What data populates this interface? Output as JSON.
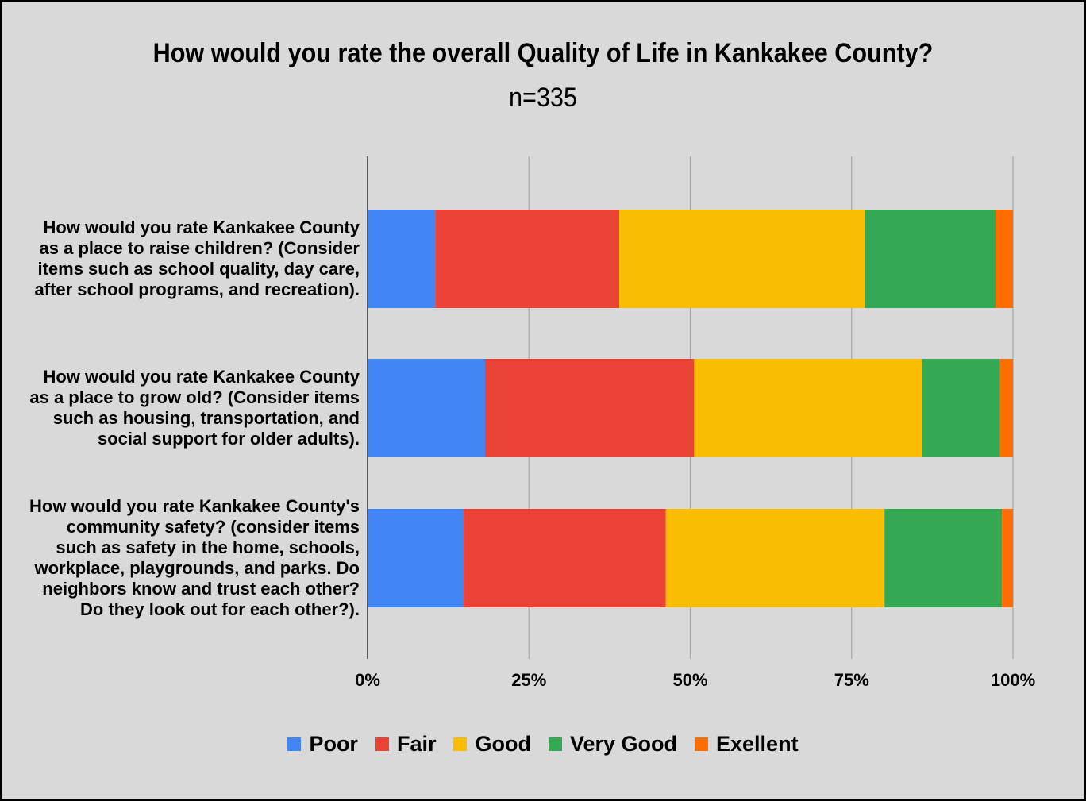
{
  "chart_data": {
    "type": "bar",
    "orientation": "horizontal",
    "stacked": "percent",
    "title": "How would you rate the overall Quality of Life in Kankakee County?",
    "subtitle": "n=335",
    "categories": [
      "How would you rate Kankakee County\nas a place to raise children? (Consider\nitems such as school quality, day care,\nafter school programs, and recreation).",
      "How would you rate Kankakee County\nas a place to grow old? (Consider items\nsuch as housing, transportation, and\nsocial support for older adults).",
      "How would you rate Kankakee County's\ncommunity safety? (consider items\nsuch as safety in the home, schools,\nworkplace, playgrounds, and parks. Do\nneighbors know and trust each other?\nDo they look out for each other?)."
    ],
    "series": [
      {
        "name": "Poor",
        "color": "#4285f4",
        "values": [
          10.5,
          18.2,
          14.9
        ]
      },
      {
        "name": "Fair",
        "color": "#ea4335",
        "values": [
          28.5,
          32.4,
          31.3
        ]
      },
      {
        "name": "Good",
        "color": "#fbbc04",
        "values": [
          38.0,
          35.3,
          33.9
        ]
      },
      {
        "name": "Very Good",
        "color": "#34a853",
        "values": [
          20.3,
          12.1,
          18.2
        ]
      },
      {
        "name": "Exellent",
        "color": "#ff6d01",
        "values": [
          2.7,
          2.0,
          1.7
        ]
      }
    ],
    "xlim": [
      0,
      100
    ],
    "xticks": [
      "0%",
      "25%",
      "50%",
      "75%",
      "100%"
    ],
    "grid": true,
    "legend_position": "bottom"
  }
}
